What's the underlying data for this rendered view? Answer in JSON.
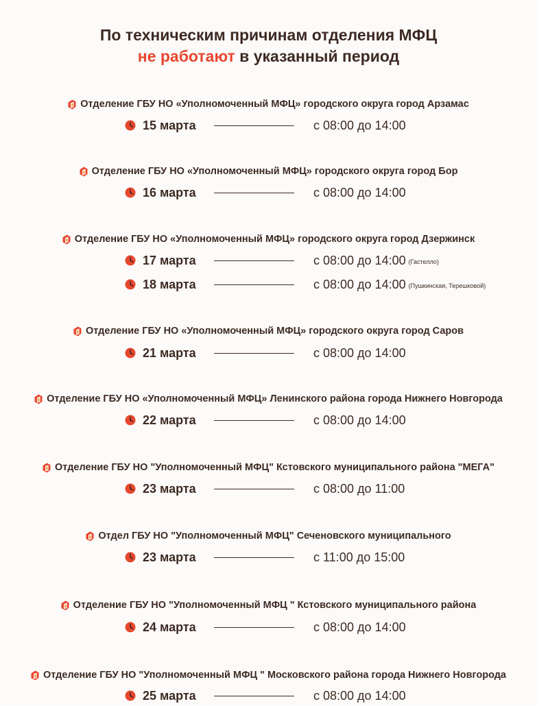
{
  "header": {
    "line1": "По техническим причинам отделения МФЦ",
    "line2_accent": "не работают",
    "line2_rest": " в указанный период"
  },
  "colors": {
    "accent": "#e8472f",
    "text": "#3d2a22",
    "background": "#fcfbfa"
  },
  "icons": {
    "branch": "mfc-logo-icon",
    "date": "clock-icon"
  },
  "branches": [
    {
      "name": "Отделение ГБУ НО «Уполномоченный МФЦ» городского округа город Арзамас",
      "entries": [
        {
          "date": "15 марта",
          "time": "с 08:00 до 14:00",
          "note": ""
        }
      ]
    },
    {
      "name": "Отделение ГБУ НО «Уполномоченный МФЦ» городского округа город Бор",
      "entries": [
        {
          "date": "16 марта",
          "time": "с 08:00 до 14:00",
          "note": ""
        }
      ]
    },
    {
      "name": "Отделение ГБУ НО «Уполномоченный МФЦ» городского округа город Дзержинск",
      "entries": [
        {
          "date": "17 марта",
          "time": "с 08:00 до 14:00",
          "note": "(Гастелло)"
        },
        {
          "date": "18 марта",
          "time": "с 08:00 до 14:00",
          "note": "(Пушкинская, Терешковой)"
        }
      ]
    },
    {
      "name": "Отделение ГБУ НО «Уполномоченный МФЦ» городского округа город Саров",
      "entries": [
        {
          "date": "21 марта",
          "time": "с 08:00 до 14:00",
          "note": ""
        }
      ]
    },
    {
      "name": "Отделение ГБУ НО «Уполномоченный МФЦ» Ленинского района города Нижнего Новгорода",
      "entries": [
        {
          "date": "22 марта",
          "time": "с 08:00 до 14:00",
          "note": ""
        }
      ]
    },
    {
      "name": "Отделение ГБУ НО \"Уполномоченный МФЦ\" Кстовского муниципального района \"МЕГА\"",
      "entries": [
        {
          "date": "23 марта",
          "time": "с 08:00 до 11:00",
          "note": ""
        }
      ]
    },
    {
      "name": "Отдел ГБУ НО \"Уполномоченный МФЦ\" Сеченовского муниципального",
      "entries": [
        {
          "date": "23 марта",
          "time": "с 11:00 до 15:00",
          "note": ""
        }
      ]
    },
    {
      "name": "Отделение ГБУ НО \"Уполномоченный МФЦ \" Кстовского муниципального района",
      "entries": [
        {
          "date": "24 марта",
          "time": "с 08:00 до 14:00",
          "note": ""
        }
      ]
    },
    {
      "name": "Отделение ГБУ НО \"Уполномоченный МФЦ \" Московского района города Нижнего Новгорода",
      "entries": [
        {
          "date": "25 марта",
          "time": "с 08:00 до 14:00",
          "note": ""
        }
      ]
    }
  ]
}
